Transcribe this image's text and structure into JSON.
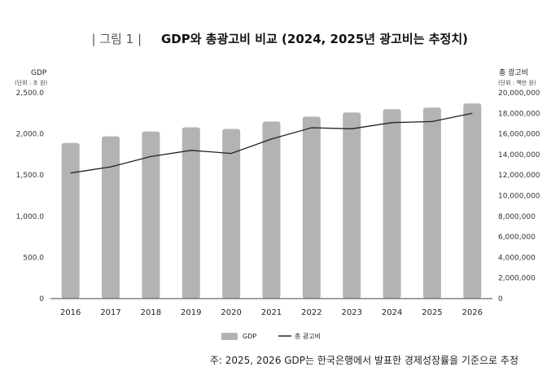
{
  "figure_label": "| 그림 1 |",
  "title": "GDP와 총광고비 비교 (2024, 2025년 광고비는 추정치)",
  "left_axis": {
    "title": "GDP",
    "unit": "(단위 : 조 원)"
  },
  "right_axis": {
    "title": "총 광고비",
    "unit": "(단위 : 백만 원)"
  },
  "legend": {
    "gdp": "GDP",
    "adspend": "총 광고비"
  },
  "note": "주: 2025, 2026 GDP는 한국은행에서 발표한 경제성장률을 기준으로 추정",
  "colors": {
    "bar": "#b3b3b3",
    "line": "#222222",
    "axis": "#444444"
  },
  "chart_data": {
    "type": "bar",
    "categories": [
      "2016",
      "2017",
      "2018",
      "2019",
      "2020",
      "2021",
      "2022",
      "2023",
      "2024",
      "2025",
      "2026"
    ],
    "series": [
      {
        "name": "GDP",
        "type": "bar",
        "axis": "left",
        "values": [
          1890,
          1970,
          2030,
          2080,
          2060,
          2150,
          2210,
          2260,
          2300,
          2320,
          2370
        ]
      },
      {
        "name": "총 광고비",
        "type": "line",
        "axis": "right",
        "values": [
          12200000,
          12800000,
          13800000,
          14400000,
          14100000,
          15500000,
          16600000,
          16500000,
          17100000,
          17200000,
          18000000
        ]
      }
    ],
    "ylim_left": [
      0,
      2500
    ],
    "ylim_right": [
      0,
      20000000
    ],
    "yticks_left": [
      "0",
      "500.0",
      "1,000.0",
      "1,500.0",
      "2,000.0",
      "2,500.0"
    ],
    "yticks_right": [
      "0",
      "2,000,000",
      "4,000,000",
      "6,000,000",
      "8,000,000",
      "10,000,000",
      "12,000,000",
      "14,000,000",
      "16,000,000",
      "18,000,000",
      "20,000,000"
    ],
    "grid": false,
    "legend_position": "bottom"
  }
}
